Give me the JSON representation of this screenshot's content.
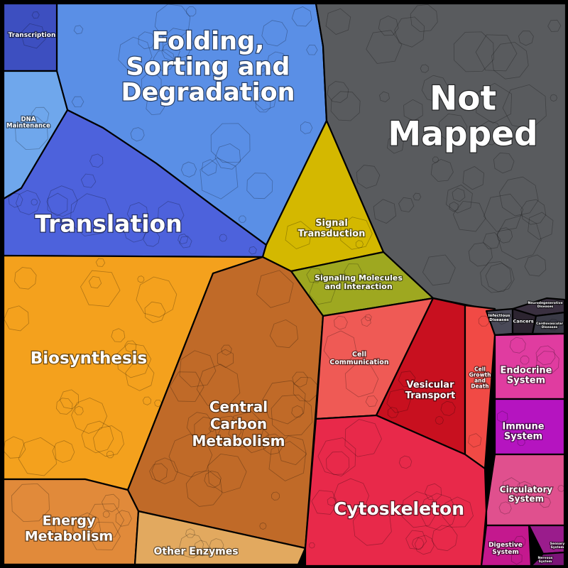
{
  "chart_data": {
    "type": "treemap",
    "title": "",
    "cells": [
      {
        "label": "Folding, Sorting and Degradation",
        "color": "#5a8fe6"
      },
      {
        "label": "Transcription",
        "color": "#3d4fc0"
      },
      {
        "label": "DNA Maintenance",
        "color": "#6fa7ec"
      },
      {
        "label": "Translation",
        "color": "#4d62dc"
      },
      {
        "label": "Not Mapped",
        "color": "#595b5e"
      },
      {
        "label": "Signal Transduction",
        "color": "#d4b800"
      },
      {
        "label": "Signaling Molecules and Interaction",
        "color": "#9ea820"
      },
      {
        "label": "Biosynthesis",
        "color": "#f4a11d"
      },
      {
        "label": "Central Carbon Metabolism",
        "color": "#c06a28"
      },
      {
        "label": "Energy Metabolism",
        "color": "#e18a3a"
      },
      {
        "label": "Other Enzymes",
        "color": "#e2a95f"
      },
      {
        "label": "Cell Communication",
        "color": "#ef5a55"
      },
      {
        "label": "Vesicular Transport",
        "color": "#c8101f"
      },
      {
        "label": "Cell Growth and Death",
        "color": "#f14a45"
      },
      {
        "label": "Cytoskeleton",
        "color": "#e8294a"
      },
      {
        "label": "Infectious Diseases",
        "color": "#4a4a58"
      },
      {
        "label": "Neurodegenerative Diseases",
        "color": "#3a3040"
      },
      {
        "label": "Cancers",
        "color": "#2c2430"
      },
      {
        "label": "Cardiovascular Diseases",
        "color": "#3a3a46"
      },
      {
        "label": "Endocrine System",
        "color": "#e03ca0"
      },
      {
        "label": "Immune System",
        "color": "#b514c0"
      },
      {
        "label": "Circulatory System",
        "color": "#e0508e"
      },
      {
        "label": "Digestive System",
        "color": "#c4188e"
      },
      {
        "label": "Sensory System",
        "color": "#9a1c8c"
      },
      {
        "label": "Nervous System",
        "color": "#7c1478"
      }
    ]
  }
}
